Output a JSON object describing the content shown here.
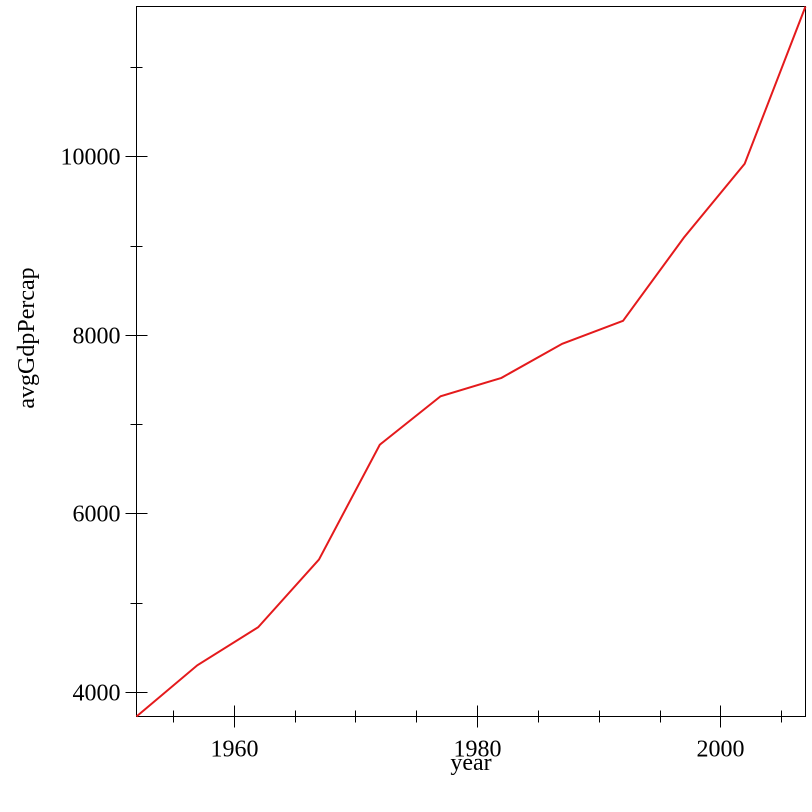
{
  "chart_data": {
    "type": "line",
    "xlabel": "year",
    "ylabel": "avgGdpPercap",
    "xlim": [
      1952,
      2007
    ],
    "ylim": [
      3725.28,
      11680.07
    ],
    "x_major_ticks": [
      1960,
      1980,
      2000
    ],
    "x_minor_ticks": [
      1955,
      1965,
      1970,
      1975,
      1985,
      1990,
      1995,
      2005
    ],
    "y_major_ticks": [
      4000,
      6000,
      8000,
      10000
    ],
    "y_minor_ticks": [
      5000,
      7000,
      9000,
      11000
    ],
    "line_color": "#e41a1c",
    "series": [
      {
        "x": [
          1952,
          1957,
          1962,
          1967,
          1972,
          1977,
          1982,
          1987,
          1992,
          1997,
          2002,
          2007
        ],
        "values": [
          3725.28,
          4299.41,
          4725.3,
          5483.65,
          6770.08,
          7313.17,
          7518.9,
          7900.92,
          8158.61,
          9090.18,
          9917.85,
          11680.07
        ]
      }
    ]
  }
}
